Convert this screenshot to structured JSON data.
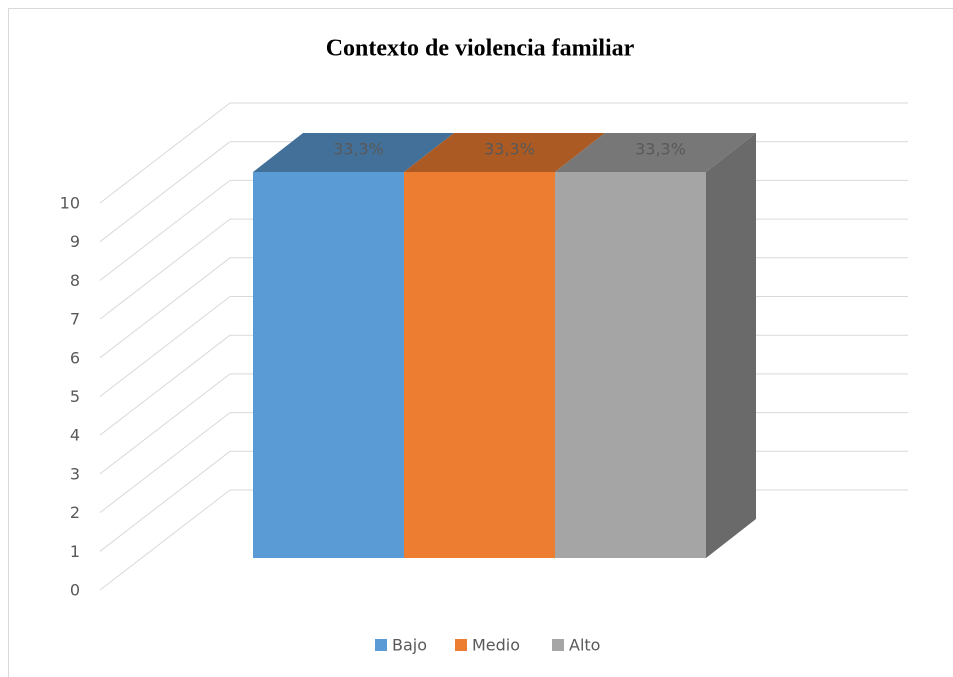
{
  "chart_data": {
    "type": "bar3d",
    "title": "Contexto de violencia familiar",
    "categories": [
      null
    ],
    "series": [
      {
        "name": "Bajo",
        "color": "#5b9bd5",
        "values": [
          10
        ],
        "value_labels": [
          "33,3%"
        ]
      },
      {
        "name": "Medio",
        "color": "#ed7d31",
        "values": [
          10
        ],
        "value_labels": [
          "33,3%"
        ]
      },
      {
        "name": "Alto",
        "color": "#a5a5a5",
        "values": [
          10
        ],
        "value_labels": [
          "33,3%"
        ]
      }
    ],
    "ylim": [
      0,
      10
    ],
    "yticks": [
      0,
      1,
      2,
      3,
      4,
      5,
      6,
      7,
      8,
      9,
      10
    ],
    "grid": true,
    "legend": "bottom"
  }
}
